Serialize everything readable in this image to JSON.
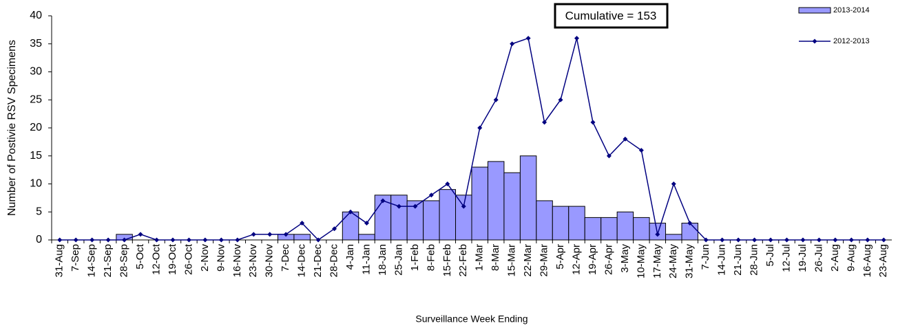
{
  "chart_data": {
    "type": "bar-line",
    "y_label": "Number of Postivie RSV Specimens",
    "x_label": "Surveillance Week Ending",
    "annotation": "Cumulative =  153",
    "categories": [
      "31-Aug",
      "7-Sep",
      "14-Sep",
      "21-Sep",
      "28-Sep",
      "5-Oct",
      "12-Oct",
      "19-Oct",
      "26-Oct",
      "2-Nov",
      "9-Nov",
      "16-Nov",
      "23-Nov",
      "30-Nov",
      "7-Dec",
      "14-Dec",
      "21-Dec",
      "28-Dec",
      "4-Jan",
      "11-Jan",
      "18-Jan",
      "25-Jan",
      "1-Feb",
      "8-Feb",
      "15-Feb",
      "22-Feb",
      "1-Mar",
      "8-Mar",
      "15-Mar",
      "22-Mar",
      "29-Mar",
      "5-Apr",
      "12-Apr",
      "19-Apr",
      "26-Apr",
      "3-May",
      "10-May",
      "17-May",
      "24-May",
      "31-May",
      "7-Jun",
      "14-Jun",
      "21-Jun",
      "28-Jun",
      "5-Jul",
      "12-Jul",
      "19-Jul",
      "26-Jul",
      "2-Aug",
      "9-Aug",
      "16-Aug",
      "23-Aug"
    ],
    "series": [
      {
        "name": "2013-2014",
        "type": "bar",
        "color": "#9999ff",
        "values": [
          0,
          0,
          0,
          0,
          1,
          0,
          0,
          0,
          0,
          0,
          0,
          0,
          0,
          0,
          1,
          1,
          0,
          0,
          5,
          1,
          8,
          8,
          7,
          7,
          9,
          8,
          13,
          14,
          12,
          15,
          7,
          6,
          6,
          4,
          4,
          5,
          4,
          3,
          1,
          3,
          0,
          0,
          0,
          0,
          0,
          0,
          0,
          0,
          0,
          0,
          0,
          0
        ]
      },
      {
        "name": "2012-2013",
        "type": "line",
        "color": "#000080",
        "values": [
          0,
          0,
          0,
          0,
          0,
          1,
          0,
          0,
          0,
          0,
          0,
          0,
          1,
          1,
          1,
          3,
          0,
          2,
          5,
          3,
          7,
          6,
          6,
          8,
          10,
          6,
          20,
          25,
          35,
          36,
          21,
          25,
          36,
          21,
          15,
          18,
          16,
          1,
          10,
          3,
          0,
          0,
          0,
          0,
          0,
          0,
          0,
          0,
          0,
          0,
          0,
          0
        ]
      }
    ],
    "ylim": [
      0,
      40
    ],
    "yticks": [
      0,
      5,
      10,
      15,
      20,
      25,
      30,
      35,
      40
    ],
    "grid": false,
    "legend": "top-right"
  }
}
